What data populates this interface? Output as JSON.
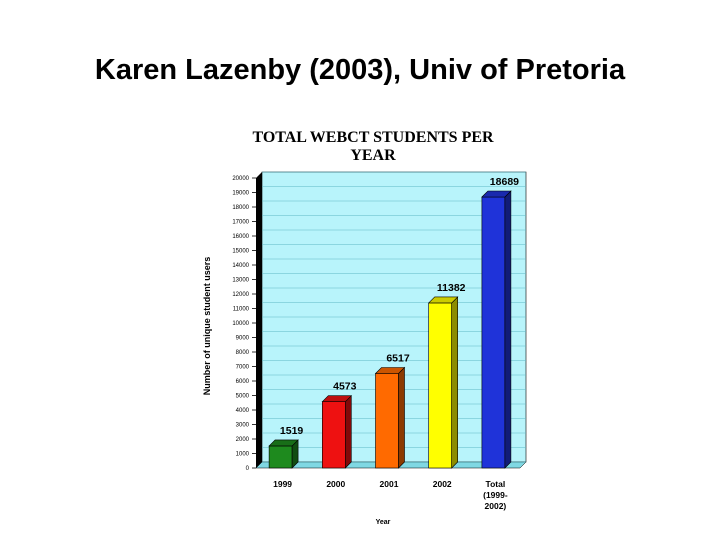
{
  "slide": {
    "title": "Karen Lazenby (2003), Univ of Pretoria"
  },
  "chart_data": {
    "type": "bar",
    "title_lines": [
      "TOTAL WEBCT STUDENTS PER",
      "YEAR"
    ],
    "ylabel": "Number of unique student users",
    "xlabel": "Year",
    "ylim": [
      0,
      20000
    ],
    "yticks": [
      0,
      1000,
      2000,
      3000,
      4000,
      5000,
      6000,
      7000,
      8000,
      9000,
      10000,
      11000,
      12000,
      13000,
      14000,
      15000,
      16000,
      17000,
      18000,
      19000,
      20000
    ],
    "categories": [
      {
        "lines": [
          "1999"
        ]
      },
      {
        "lines": [
          "2000"
        ]
      },
      {
        "lines": [
          "2001"
        ]
      },
      {
        "lines": [
          "2002"
        ]
      },
      {
        "lines": [
          "Total",
          "(1999-",
          "2002)"
        ]
      }
    ],
    "values": [
      1519,
      4573,
      6517,
      11382,
      18689
    ],
    "value_labels": [
      "1519",
      "4573",
      "6517",
      "11382",
      "18689"
    ],
    "colors": [
      "#1e8a1e",
      "#ee1111",
      "#ff6a00",
      "#ffff00",
      "#1f33d9"
    ],
    "background_color": "#b8f4fb",
    "grid": true
  }
}
